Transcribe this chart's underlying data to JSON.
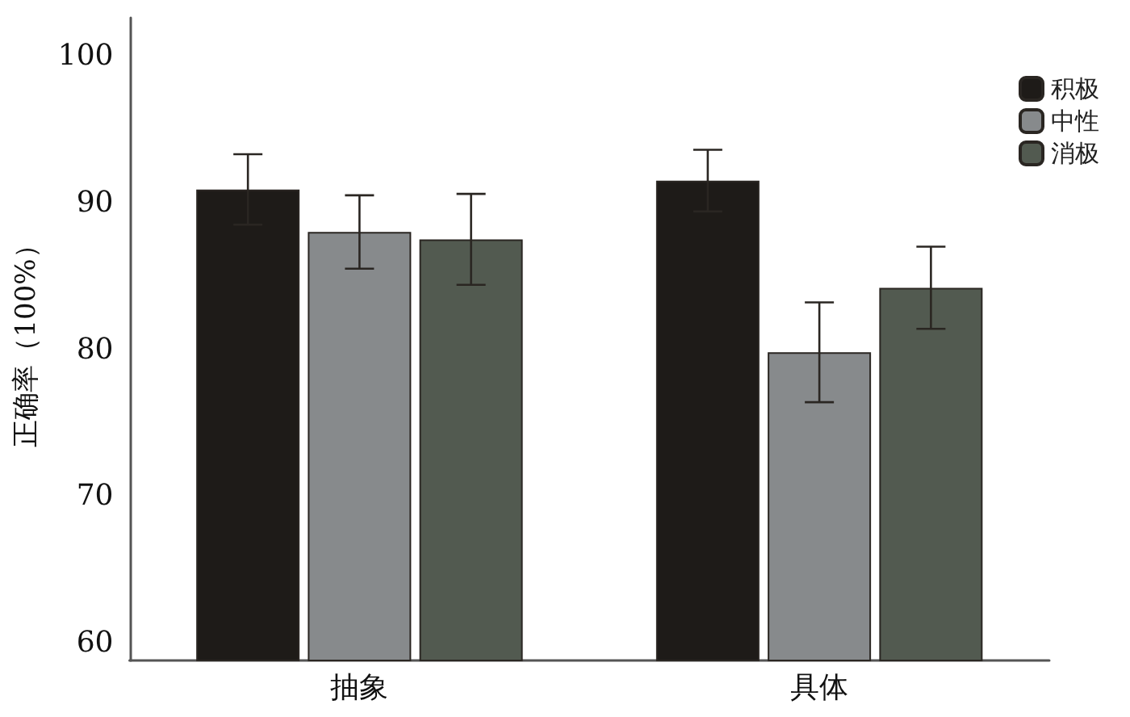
{
  "chart_data": {
    "type": "bar",
    "ylabel": "正确率（100%）",
    "categories": [
      "抽象",
      "具体"
    ],
    "series": [
      {
        "name": "积极",
        "color": "#1e1b18",
        "values": [
          90.9,
          91.5
        ],
        "errors": [
          2.4,
          2.1
        ]
      },
      {
        "name": "中性",
        "color": "#878a8c",
        "values": [
          88.0,
          79.8
        ],
        "errors": [
          2.5,
          3.4
        ]
      },
      {
        "name": "消极",
        "color": "#525a50",
        "values": [
          87.5,
          84.2
        ],
        "errors": [
          3.1,
          2.8
        ]
      }
    ],
    "ylim": [
      58.8,
      102.6
    ],
    "yticks": [
      60,
      70,
      80,
      90,
      100
    ],
    "grid": false,
    "legend": "top right"
  }
}
